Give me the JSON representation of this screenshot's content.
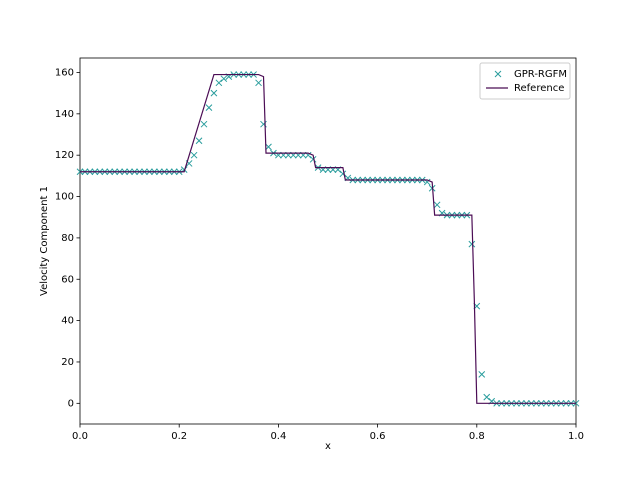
{
  "chart_data": {
    "type": "line",
    "xlabel": "x",
    "ylabel": "Velocity Component 1",
    "xlim": [
      0,
      1
    ],
    "ylim": [
      -10,
      167
    ],
    "xticks": [
      {
        "value": 0,
        "label": "0.0"
      },
      {
        "value": 0.2,
        "label": "0.2"
      },
      {
        "value": 0.4,
        "label": "0.4"
      },
      {
        "value": 0.6,
        "label": "0.6"
      },
      {
        "value": 0.8,
        "label": "0.8"
      },
      {
        "value": 1,
        "label": "1.0"
      }
    ],
    "yticks": [
      0,
      20,
      40,
      60,
      80,
      100,
      120,
      140,
      160
    ],
    "legend": "upper right",
    "series": [
      {
        "name": "GPR-RGFM",
        "type": "scatter",
        "color": "#2a9d9d",
        "x": [
          0,
          0.01,
          0.02,
          0.03,
          0.04,
          0.05,
          0.06,
          0.07,
          0.08,
          0.09,
          0.1,
          0.11,
          0.12,
          0.13,
          0.14,
          0.15,
          0.16,
          0.17,
          0.18,
          0.19,
          0.2,
          0.21,
          0.22,
          0.23,
          0.24,
          0.25,
          0.26,
          0.27,
          0.28,
          0.29,
          0.3,
          0.31,
          0.32,
          0.33,
          0.34,
          0.35,
          0.36,
          0.37,
          0.38,
          0.39,
          0.4,
          0.41,
          0.42,
          0.43,
          0.44,
          0.45,
          0.46,
          0.47,
          0.48,
          0.49,
          0.5,
          0.51,
          0.52,
          0.53,
          0.54,
          0.55,
          0.56,
          0.57,
          0.58,
          0.59,
          0.6,
          0.61,
          0.62,
          0.63,
          0.64,
          0.65,
          0.66,
          0.67,
          0.68,
          0.69,
          0.7,
          0.71,
          0.72,
          0.73,
          0.74,
          0.75,
          0.76,
          0.77,
          0.78,
          0.79,
          0.8,
          0.81,
          0.82,
          0.83,
          0.84,
          0.85,
          0.86,
          0.87,
          0.88,
          0.89,
          0.9,
          0.91,
          0.92,
          0.93,
          0.94,
          0.95,
          0.96,
          0.97,
          0.98,
          0.99,
          1
        ],
        "values": [
          112,
          112,
          112,
          112,
          112,
          112,
          112,
          112,
          112,
          112,
          112,
          112,
          112,
          112,
          112,
          112,
          112,
          112,
          112,
          112,
          112,
          113,
          116,
          120,
          127,
          135,
          143,
          150,
          155,
          157,
          158,
          159,
          159,
          159,
          159,
          159,
          155,
          135,
          124,
          121,
          120,
          120,
          120,
          120,
          120,
          120,
          120,
          118,
          114,
          113,
          113,
          113,
          113,
          111,
          109,
          108,
          108,
          108,
          108,
          108,
          108,
          108,
          108,
          108,
          108,
          108,
          108,
          108,
          108,
          108,
          107,
          104,
          96,
          92,
          91,
          91,
          91,
          91,
          91,
          77,
          47,
          14,
          3,
          1,
          0,
          0,
          0,
          0,
          0,
          0,
          0,
          0,
          0,
          0,
          0,
          0,
          0,
          0,
          0,
          0,
          0
        ]
      },
      {
        "name": "Reference",
        "type": "line",
        "color": "#4b0d55",
        "x": [
          0,
          0.21,
          0.27,
          0.36,
          0.37,
          0.375,
          0.46,
          0.47,
          0.475,
          0.53,
          0.535,
          0.7,
          0.71,
          0.715,
          0.79,
          0.795,
          0.8,
          1
        ],
        "values": [
          112,
          112,
          159,
          159,
          158,
          121,
          121,
          120,
          114,
          114,
          108,
          108,
          107,
          91,
          91,
          50,
          0,
          0
        ]
      }
    ]
  }
}
